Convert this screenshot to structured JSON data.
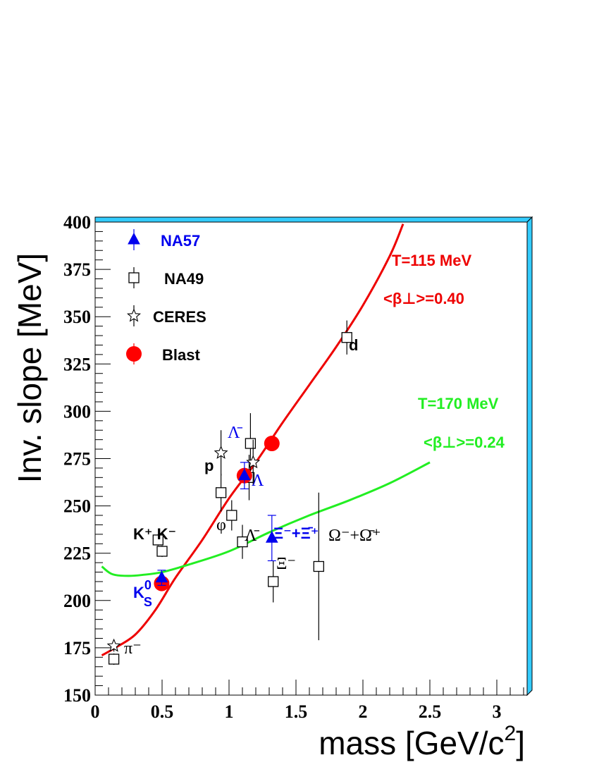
{
  "chart_data": {
    "type": "scatter",
    "xlabel": "mass  [GeV/c",
    "xlabel_sup": "2",
    "xlabel_end": "]",
    "ylabel": "Inv. slope  [MeV]",
    "xlim": [
      0,
      3.2
    ],
    "ylim": [
      150,
      400
    ],
    "x_ticks": [
      {
        "value": 0,
        "label": "0"
      },
      {
        "value": 0.5,
        "label": "0.5"
      },
      {
        "value": 1,
        "label": "1"
      },
      {
        "value": 1.5,
        "label": "1.5"
      },
      {
        "value": 2,
        "label": "2"
      },
      {
        "value": 2.5,
        "label": "2.5"
      },
      {
        "value": 3,
        "label": "3"
      }
    ],
    "y_ticks": [
      {
        "value": 150,
        "label": "150"
      },
      {
        "value": 175,
        "label": "175"
      },
      {
        "value": 200,
        "label": "200"
      },
      {
        "value": 225,
        "label": "225"
      },
      {
        "value": 250,
        "label": "250"
      },
      {
        "value": 275,
        "label": "275"
      },
      {
        "value": 300,
        "label": "300"
      },
      {
        "value": 325,
        "label": "325"
      },
      {
        "value": 350,
        "label": "350"
      },
      {
        "value": 375,
        "label": "375"
      },
      {
        "value": 400,
        "label": "400"
      }
    ],
    "grid": false,
    "legend_position": "top-left",
    "colors": {
      "frame": "#33ccff",
      "na57": "#0000ee",
      "na49": "#000000",
      "ceres": "#000000",
      "blast": "#ff0000",
      "curve_115": "#ee0000",
      "curve_170": "#22ee22"
    },
    "legend": [
      {
        "name": "NA57",
        "marker": "triangle",
        "color": "#0000ee"
      },
      {
        "name": "NA49",
        "marker": "square-open",
        "color": "#000000"
      },
      {
        "name": "CERES",
        "marker": "star-open",
        "color": "#000000"
      },
      {
        "name": "Blast",
        "marker": "circle-filled",
        "color": "#ff0000"
      }
    ],
    "series": [
      {
        "name": "NA57",
        "marker": "triangle",
        "points": [
          {
            "x": 0.497,
            "y": 212,
            "err": 4
          },
          {
            "x": 1.115,
            "y": 266,
            "err": 7
          },
          {
            "x": 1.32,
            "y": 233,
            "err": 12
          }
        ]
      },
      {
        "name": "NA49",
        "marker": "square-open",
        "points": [
          {
            "x": 0.14,
            "y": 169,
            "err": 3
          },
          {
            "x": 0.47,
            "y": 232,
            "err": 3
          },
          {
            "x": 0.5,
            "y": 226,
            "err": 3
          },
          {
            "x": 0.94,
            "y": 257,
            "err": 10
          },
          {
            "x": 1.02,
            "y": 245,
            "err": 8
          },
          {
            "x": 1.1,
            "y": 231,
            "err": 9
          },
          {
            "x": 1.15,
            "y": 265,
            "err": 12
          },
          {
            "x": 1.16,
            "y": 283,
            "err": 16
          },
          {
            "x": 1.33,
            "y": 210,
            "err": 11
          },
          {
            "x": 1.67,
            "y": 218,
            "err": 39
          },
          {
            "x": 1.88,
            "y": 339,
            "err": 9
          }
        ]
      },
      {
        "name": "CERES",
        "marker": "star-open",
        "points": [
          {
            "x": 0.14,
            "y": 176,
            "err": 3
          },
          {
            "x": 0.94,
            "y": 278,
            "err": 12
          },
          {
            "x": 1.18,
            "y": 273,
            "err": 12
          }
        ]
      },
      {
        "name": "Blast",
        "marker": "circle-filled",
        "points": [
          {
            "x": 0.497,
            "y": 209
          },
          {
            "x": 1.115,
            "y": 266
          },
          {
            "x": 1.32,
            "y": 283
          }
        ]
      }
    ],
    "curves": [
      {
        "name": "T=115 MeV",
        "color": "#ee0000",
        "points": [
          [
            0.05,
            171
          ],
          [
            0.15,
            175
          ],
          [
            0.3,
            182
          ],
          [
            0.45,
            195
          ],
          [
            0.6,
            212
          ],
          [
            0.8,
            232
          ],
          [
            1.0,
            254
          ],
          [
            1.2,
            273
          ],
          [
            1.4,
            294
          ],
          [
            1.6,
            314
          ],
          [
            1.8,
            334
          ],
          [
            2.0,
            356
          ],
          [
            2.2,
            382
          ],
          [
            2.3,
            399
          ]
        ]
      },
      {
        "name": "T=170 MeV",
        "color": "#22ee22",
        "points": [
          [
            0.05,
            218
          ],
          [
            0.1,
            215
          ],
          [
            0.15,
            213.5
          ],
          [
            0.25,
            213
          ],
          [
            0.35,
            213.5
          ],
          [
            0.5,
            215
          ],
          [
            0.7,
            219
          ],
          [
            1.0,
            226
          ],
          [
            1.3,
            236
          ],
          [
            1.6,
            245
          ],
          [
            1.9,
            253
          ],
          [
            2.2,
            262
          ],
          [
            2.5,
            273
          ]
        ]
      }
    ],
    "annotations": {
      "t115": "T=115 MeV",
      "beta040": "<β⊥>=0.40",
      "t170": "T=170 MeV",
      "beta024": "<β⊥>=0.24",
      "d": "d",
      "p": "p",
      "lambdabar_top": "Λ̄",
      "lambda": "Λ",
      "phi": "φ",
      "lambdabar": "Λ̄",
      "kk": "K⁺ K⁻",
      "xi_pair": "Ξ⁻+Ξ̄⁺",
      "omega": "Ω⁻+Ω̄⁺",
      "xi": "Ξ⁻",
      "ks": "K",
      "ks_sup": "0",
      "ks_sub": "S",
      "pi": "π⁻"
    }
  }
}
